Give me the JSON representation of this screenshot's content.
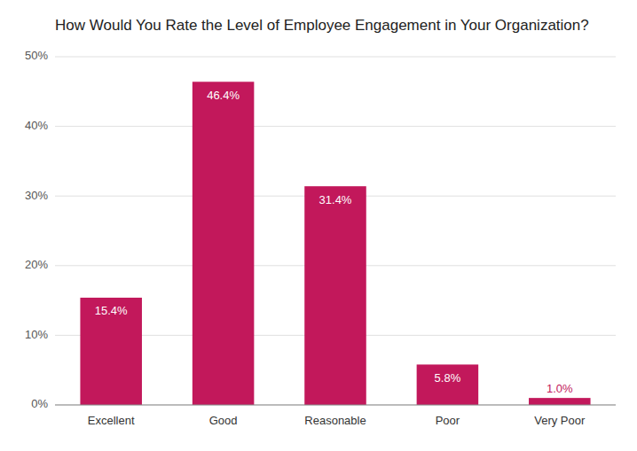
{
  "chart_data": {
    "type": "bar",
    "title": "How Would You Rate the Level of Employee Engagement in Your Organization?",
    "categories": [
      "Excellent",
      "Good",
      "Reasonable",
      "Poor",
      "Very Poor"
    ],
    "values": [
      15.4,
      46.4,
      31.4,
      5.8,
      1.0
    ],
    "value_labels": [
      "15.4%",
      "46.4%",
      "31.4%",
      "5.8%",
      "1.0%"
    ],
    "color": "#C2185B",
    "ylim": [
      0,
      50
    ],
    "yticks": [
      {
        "value": 0,
        "label": "0%"
      },
      {
        "value": 10,
        "label": "10%"
      },
      {
        "value": 20,
        "label": "20%"
      },
      {
        "value": 30,
        "label": "30%"
      },
      {
        "value": 40,
        "label": "40%"
      },
      {
        "value": 50,
        "label": "50%"
      }
    ],
    "grid": true,
    "data_labels": true
  }
}
